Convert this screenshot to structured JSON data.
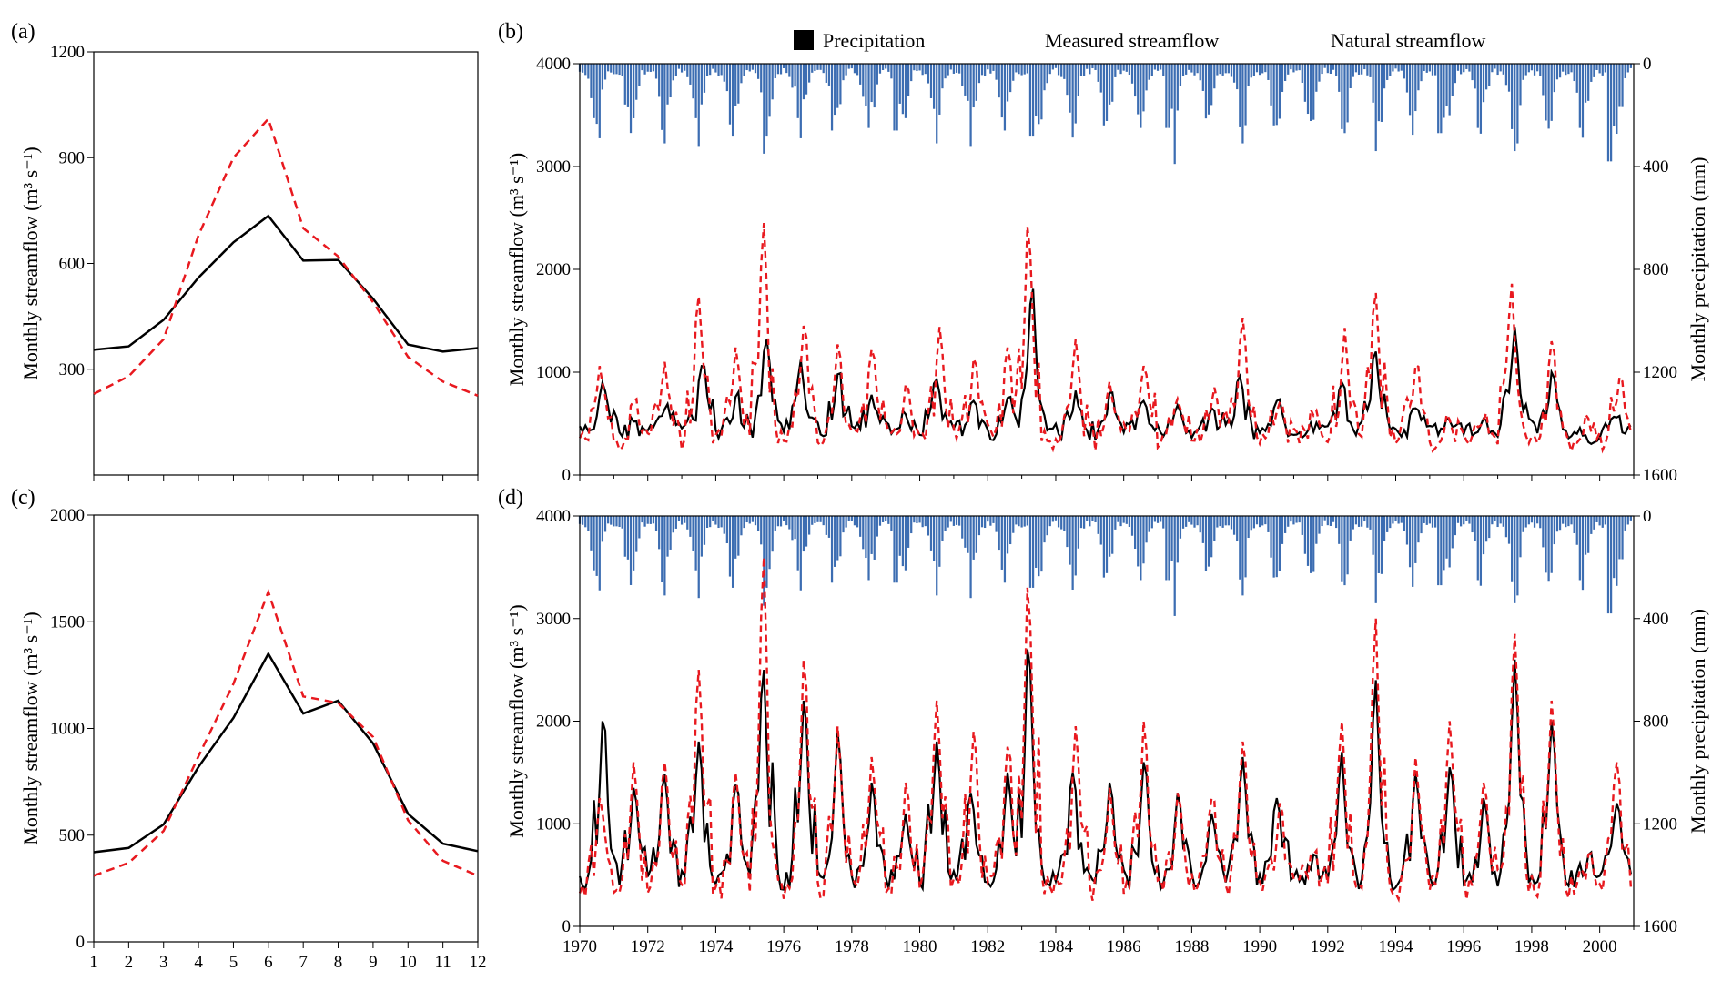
{
  "colors": {
    "precipitation": "#3c6db2",
    "measured": "#000000",
    "natural": "#e8191f"
  },
  "legend": {
    "precipitation": "Precipitation",
    "measured": "Measured streamflow",
    "natural": "Natural streamflow"
  },
  "chart_data": [
    {
      "panel": "(a)",
      "type": "line",
      "ylabel": "Monthly streamflow (m³ s⁻¹)",
      "ylim": [
        0,
        1200
      ],
      "x": [
        1,
        2,
        3,
        4,
        5,
        6,
        7,
        8,
        9,
        10,
        11,
        12
      ],
      "yticks": [
        300,
        600,
        900,
        1200
      ],
      "series": [
        {
          "name": "Measured streamflow",
          "values": [
            355,
            365,
            440,
            560,
            660,
            735,
            608,
            610,
            500,
            370,
            350,
            360
          ]
        },
        {
          "name": "Natural streamflow",
          "values": [
            230,
            280,
            385,
            680,
            900,
            1010,
            700,
            620,
            490,
            335,
            265,
            225
          ]
        }
      ]
    },
    {
      "panel": "(b)",
      "type": "line",
      "ylabel": "Monthly streamflow (m³ s⁻¹)",
      "ylim": [
        0,
        4000
      ],
      "ylabel_right": "Monthly precipitation (mm)",
      "ylim_right": [
        1600,
        0
      ],
      "yticks": [
        0,
        1000,
        2000,
        3000,
        4000
      ],
      "yticks_right": [
        0,
        400,
        800,
        1200,
        1600
      ],
      "x_range": [
        1970,
        2001
      ],
      "legend_position": "top",
      "peaks_measured": [
        [
          1970.7,
          900
        ],
        [
          1971.6,
          520
        ],
        [
          1972.6,
          690
        ],
        [
          1973.6,
          1060
        ],
        [
          1974.6,
          760
        ],
        [
          1975.5,
          1320
        ],
        [
          1976.5,
          1120
        ],
        [
          1977.6,
          980
        ],
        [
          1978.6,
          780
        ],
        [
          1979.6,
          590
        ],
        [
          1980.5,
          930
        ],
        [
          1981.6,
          720
        ],
        [
          1982.6,
          750
        ],
        [
          1983.3,
          1810
        ],
        [
          1984.6,
          820
        ],
        [
          1985.6,
          800
        ],
        [
          1986.6,
          720
        ],
        [
          1987.6,
          680
        ],
        [
          1988.6,
          650
        ],
        [
          1989.4,
          960
        ],
        [
          1990.5,
          720
        ],
        [
          1991.6,
          420
        ],
        [
          1992.4,
          900
        ],
        [
          1993.4,
          1200
        ],
        [
          1994.6,
          650
        ],
        [
          1995.6,
          530
        ],
        [
          1996.6,
          550
        ],
        [
          1997.5,
          1440
        ],
        [
          1998.6,
          1000
        ],
        [
          1999.7,
          320
        ],
        [
          2000.5,
          560
        ]
      ],
      "peaks_natural": [
        [
          1970.6,
          1060
        ],
        [
          1971.6,
          720
        ],
        [
          1972.5,
          1100
        ],
        [
          1973.5,
          1740
        ],
        [
          1974.6,
          1240
        ],
        [
          1975.4,
          2450
        ],
        [
          1976.6,
          1450
        ],
        [
          1977.6,
          1270
        ],
        [
          1978.6,
          1220
        ],
        [
          1979.6,
          880
        ],
        [
          1980.6,
          1440
        ],
        [
          1981.6,
          1130
        ],
        [
          1982.6,
          1240
        ],
        [
          1983.2,
          2420
        ],
        [
          1984.6,
          1320
        ],
        [
          1985.6,
          910
        ],
        [
          1986.6,
          1060
        ],
        [
          1987.6,
          740
        ],
        [
          1988.7,
          850
        ],
        [
          1989.5,
          1530
        ],
        [
          1990.6,
          700
        ],
        [
          1991.6,
          580
        ],
        [
          1992.5,
          1430
        ],
        [
          1993.4,
          1770
        ],
        [
          1994.6,
          1070
        ],
        [
          1995.6,
          540
        ],
        [
          1996.6,
          540
        ],
        [
          1997.4,
          1860
        ],
        [
          1998.6,
          1300
        ],
        [
          1999.7,
          550
        ],
        [
          2000.6,
          950
        ]
      ],
      "precipitation_peaks": [
        [
          1970.6,
          290
        ],
        [
          1972.5,
          310
        ],
        [
          1973.5,
          320
        ],
        [
          1974.5,
          280
        ],
        [
          1975.4,
          350
        ],
        [
          1975.5,
          280
        ],
        [
          1976.5,
          290
        ],
        [
          1977.4,
          260
        ],
        [
          1978.5,
          250
        ],
        [
          1979.3,
          260
        ],
        [
          1980.5,
          310
        ],
        [
          1981.5,
          320
        ],
        [
          1982.5,
          260
        ],
        [
          1983.3,
          280
        ],
        [
          1985.4,
          240
        ],
        [
          1986.5,
          250
        ],
        [
          1987.3,
          250
        ],
        [
          1987.5,
          390
        ],
        [
          1989.5,
          310
        ],
        [
          1990.4,
          240
        ],
        [
          1992.5,
          270
        ],
        [
          1993.4,
          340
        ],
        [
          1995.3,
          270
        ],
        [
          1996.4,
          250
        ],
        [
          1997.5,
          340
        ],
        [
          1997.6,
          310
        ],
        [
          1999.4,
          250
        ],
        [
          2000.3,
          380
        ]
      ]
    },
    {
      "panel": "(c)",
      "type": "line",
      "ylabel": "Monthly streamflow (m³ s⁻¹)",
      "ylim": [
        0,
        2000
      ],
      "x": [
        1,
        2,
        3,
        4,
        5,
        6,
        7,
        8,
        9,
        10,
        11,
        12
      ],
      "xticks": [
        "1",
        "2",
        "3",
        "4",
        "5",
        "6",
        "7",
        "8",
        "9",
        "10",
        "11",
        "12"
      ],
      "yticks": [
        0,
        500,
        1000,
        1500,
        2000
      ],
      "series": [
        {
          "name": "Measured streamflow",
          "values": [
            420,
            440,
            550,
            820,
            1050,
            1350,
            1070,
            1130,
            930,
            600,
            460,
            425
          ]
        },
        {
          "name": "Natural streamflow",
          "values": [
            310,
            370,
            520,
            870,
            1210,
            1640,
            1150,
            1120,
            960,
            570,
            380,
            310
          ]
        }
      ]
    },
    {
      "panel": "(d)",
      "type": "line",
      "ylabel": "Monthly streamflow (m³ s⁻¹)",
      "ylim": [
        0,
        4000
      ],
      "ylabel_right": "Monthly precipitation (mm)",
      "ylim_right": [
        1600,
        0
      ],
      "yticks": [
        0,
        1000,
        2000,
        3000,
        4000
      ],
      "yticks_right": [
        0,
        400,
        800,
        1200,
        1600
      ],
      "xticks": [
        "1970",
        "1972",
        "1974",
        "1976",
        "1978",
        "1980",
        "1982",
        "1984",
        "1986",
        "1988",
        "1990",
        "1992",
        "1994",
        "1996",
        "1998",
        "2000"
      ],
      "x_range": [
        1970,
        2001
      ],
      "peaks_measured": [
        [
          1970.7,
          2000
        ],
        [
          1971.6,
          1350
        ],
        [
          1972.5,
          1480
        ],
        [
          1973.5,
          1800
        ],
        [
          1974.6,
          1380
        ],
        [
          1975.4,
          2500
        ],
        [
          1976.6,
          2200
        ],
        [
          1977.6,
          1900
        ],
        [
          1978.6,
          1400
        ],
        [
          1979.6,
          1100
        ],
        [
          1980.5,
          1800
        ],
        [
          1981.5,
          1300
        ],
        [
          1982.6,
          1500
        ],
        [
          1983.2,
          2700
        ],
        [
          1984.5,
          1500
        ],
        [
          1985.6,
          1400
        ],
        [
          1986.6,
          1600
        ],
        [
          1987.6,
          1300
        ],
        [
          1988.6,
          1100
        ],
        [
          1989.5,
          1650
        ],
        [
          1990.5,
          1250
        ],
        [
          1991.6,
          700
        ],
        [
          1992.4,
          1700
        ],
        [
          1993.4,
          2400
        ],
        [
          1994.6,
          1500
        ],
        [
          1995.6,
          1550
        ],
        [
          1996.6,
          1250
        ],
        [
          1997.5,
          2600
        ],
        [
          1998.6,
          2000
        ],
        [
          1999.7,
          700
        ],
        [
          2000.5,
          1200
        ]
      ],
      "peaks_natural": [
        [
          1970.6,
          1250
        ],
        [
          1971.6,
          1600
        ],
        [
          1972.5,
          1600
        ],
        [
          1973.5,
          2500
        ],
        [
          1974.6,
          1500
        ],
        [
          1975.4,
          3600
        ],
        [
          1976.6,
          2600
        ],
        [
          1977.6,
          1950
        ],
        [
          1978.6,
          1650
        ],
        [
          1979.6,
          1400
        ],
        [
          1980.5,
          2200
        ],
        [
          1981.6,
          1900
        ],
        [
          1982.6,
          1750
        ],
        [
          1983.2,
          3300
        ],
        [
          1984.6,
          1950
        ],
        [
          1985.6,
          1350
        ],
        [
          1986.6,
          2000
        ],
        [
          1987.6,
          1300
        ],
        [
          1988.6,
          1250
        ],
        [
          1989.5,
          1800
        ],
        [
          1990.6,
          1200
        ],
        [
          1991.6,
          700
        ],
        [
          1992.4,
          2000
        ],
        [
          1993.4,
          3000
        ],
        [
          1994.6,
          1650
        ],
        [
          1995.6,
          2000
        ],
        [
          1996.6,
          1400
        ],
        [
          1997.5,
          2850
        ],
        [
          1998.6,
          2200
        ],
        [
          1999.7,
          700
        ],
        [
          2000.5,
          1600
        ]
      ],
      "precipitation_peaks": [
        [
          1970.6,
          290
        ],
        [
          1972.5,
          310
        ],
        [
          1973.5,
          320
        ],
        [
          1974.5,
          280
        ],
        [
          1975.4,
          350
        ],
        [
          1975.5,
          280
        ],
        [
          1976.5,
          290
        ],
        [
          1977.4,
          260
        ],
        [
          1978.5,
          250
        ],
        [
          1979.3,
          260
        ],
        [
          1980.5,
          310
        ],
        [
          1981.5,
          320
        ],
        [
          1982.5,
          260
        ],
        [
          1983.3,
          280
        ],
        [
          1985.4,
          240
        ],
        [
          1986.5,
          250
        ],
        [
          1987.3,
          250
        ],
        [
          1987.5,
          390
        ],
        [
          1989.5,
          310
        ],
        [
          1990.4,
          240
        ],
        [
          1992.5,
          270
        ],
        [
          1993.4,
          340
        ],
        [
          1995.3,
          270
        ],
        [
          1996.4,
          250
        ],
        [
          1997.5,
          340
        ],
        [
          1997.6,
          310
        ],
        [
          1999.4,
          250
        ],
        [
          2000.3,
          380
        ]
      ]
    }
  ]
}
